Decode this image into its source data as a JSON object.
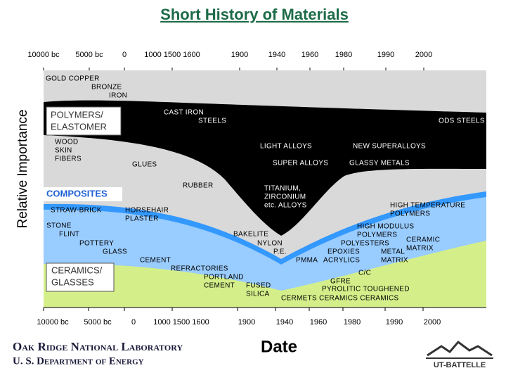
{
  "title": "Short History of Materials",
  "y_axis_label": "Relative Importance",
  "x_axis_label": "Date",
  "top_axis": [
    "10000 bc",
    "5000 bc",
    "0",
    "1000  1500  1600",
    "1900",
    "1940",
    "1960",
    "1980",
    "1990",
    "2000"
  ],
  "bottom_axis": [
    "10000 bc",
    "5000 bc",
    "0",
    "1000  1500  1600",
    "1900",
    "1940",
    "1960",
    "1980",
    "1990",
    "2000"
  ],
  "labels": [
    "GOLD  COPPER",
    "BRONZE",
    "IRON",
    "CAST IRON",
    "STEELS",
    "ODS STEELS",
    "POLYMERS/",
    "ELASTOMER",
    "WOOD",
    "SKIN",
    "FIBERS",
    "GLUES",
    "LIGHT ALLOYS",
    "NEW SUPERALLOYS",
    "SUPER ALLOYS",
    "GLASSY METALS",
    "RUBBER",
    "TITANIUM,",
    "ZIRCONIUM",
    "etc. ALLOYS",
    "COMPOSITES",
    "STRAW-BRICK",
    "HORSEHAIR",
    "PLASTER",
    "HIGH TEMPERATURE",
    "POLYMERS",
    "STONE",
    "FLINT",
    "POTTERY",
    "GLASS",
    "BAKELITE",
    "NYLON",
    "P.E.",
    "HIGH MODULUS",
    "POLYMERS",
    "CERAMIC",
    "POLYESTERS",
    "MATRIX",
    "EPOXIES",
    "METAL",
    "CEMENT",
    "PMMA",
    "ACRYLICS",
    "MATRIX",
    "CERAMICS/",
    "GLASSES",
    "REFRACTORIES",
    "PORTLAND",
    "CEMENT",
    "C/C",
    "GFRE",
    "FUSED",
    "PYROLITIC  TOUGHENED",
    "SILICA",
    "CERMETS  CERAMICS  CERAMICS"
  ],
  "footer": {
    "organization": "Oak Ridge National Laboratory",
    "department": "U. S. Department of Energy",
    "partner": "UT-BATTELLE"
  }
}
